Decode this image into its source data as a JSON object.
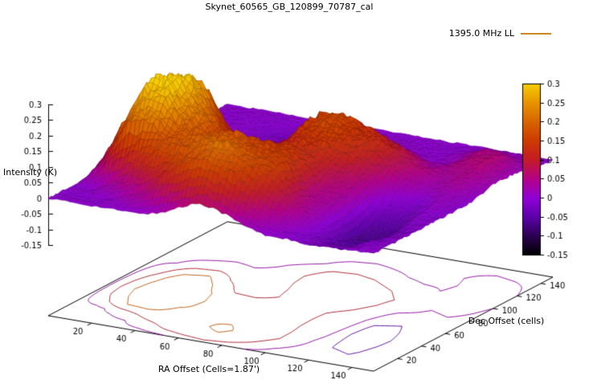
{
  "chart_data": {
    "type": "surface3d",
    "title": "Skynet_60565_GB_120899_70787_cal",
    "legend": {
      "label": "1395.0 MHz LL",
      "line_color": "#cc8822"
    },
    "xlabel": "RA Offset (Cells=1.87')",
    "ylabel": "Dec Offset (cells)",
    "zlabel": "Intensity (K)",
    "x_ticks": [
      20,
      40,
      60,
      80,
      100,
      120,
      140
    ],
    "y_ticks": [
      20,
      40,
      60,
      80,
      100,
      120,
      140
    ],
    "z_ticks": [
      "0.3",
      "0.25",
      "0.2",
      "0.15",
      "0.1",
      "0.05",
      "0",
      "-0.05",
      "-0.1",
      "-0.15"
    ],
    "cb_ticks": [
      "0.3",
      "0.25",
      "0.2",
      "0.15",
      "0.1",
      "0.05",
      "0",
      "-0.05",
      "-0.1",
      "-0.15"
    ],
    "x_range": [
      0,
      150
    ],
    "y_range": [
      0,
      150
    ],
    "z_range": [
      -0.15,
      0.3
    ],
    "cb_range": [
      -0.15,
      0.3
    ],
    "palette_stops": [
      {
        "t": 0.0,
        "c": "#000000"
      },
      {
        "t": 0.11,
        "c": "#2a0050"
      },
      {
        "t": 0.22,
        "c": "#5c00a8"
      },
      {
        "t": 0.33,
        "c": "#9000d8"
      },
      {
        "t": 0.44,
        "c": "#b4008c"
      },
      {
        "t": 0.56,
        "c": "#c41c24"
      },
      {
        "t": 0.67,
        "c": "#cc3c00"
      },
      {
        "t": 0.78,
        "c": "#d86400"
      },
      {
        "t": 0.89,
        "c": "#e89400"
      },
      {
        "t": 1.0,
        "c": "#f8cc00"
      }
    ],
    "contour_levels": [
      -0.04,
      0.02,
      0.1,
      0.2
    ],
    "heightmap": {
      "nx": 16,
      "ny": 16,
      "dx": 10,
      "dy": 10,
      "values": [
        [
          0,
          0,
          0,
          0,
          0,
          0.01,
          0.04,
          0.07,
          0.05,
          0.02,
          0,
          0,
          -0.01,
          0,
          0,
          0
        ],
        [
          0,
          0,
          0,
          0.02,
          0.06,
          0.13,
          0.17,
          0.18,
          0.15,
          0.09,
          0.03,
          0,
          -0.02,
          -0.03,
          0,
          0
        ],
        [
          0,
          0,
          0.04,
          0.1,
          0.16,
          0.18,
          0.19,
          0.22,
          0.17,
          0.14,
          0.07,
          0.01,
          -0.04,
          -0.05,
          -0.01,
          0
        ],
        [
          0,
          0.08,
          0.2,
          0.22,
          0.18,
          0.19,
          0.2,
          0.19,
          0.17,
          0.15,
          0.06,
          0.02,
          -0.05,
          -0.06,
          -0.02,
          0
        ],
        [
          0,
          0.14,
          0.26,
          0.28,
          0.21,
          0.18,
          0.19,
          0.17,
          0.16,
          0.14,
          0.05,
          0.03,
          -0.06,
          -0.07,
          -0.02,
          0
        ],
        [
          0,
          0.17,
          0.3,
          0.31,
          0.23,
          0.17,
          0.18,
          0.16,
          0.15,
          0.13,
          0.06,
          0.04,
          -0.05,
          -0.06,
          -0.01,
          0
        ],
        [
          0,
          0.15,
          0.29,
          0.3,
          0.22,
          0.14,
          0.13,
          0.14,
          0.14,
          0.12,
          0.08,
          0.05,
          -0.03,
          -0.04,
          0,
          0
        ],
        [
          0,
          0.11,
          0.26,
          0.28,
          0.17,
          0.07,
          0.06,
          0.11,
          0.14,
          0.14,
          0.11,
          0.07,
          0,
          -0.02,
          0.01,
          0
        ],
        [
          0,
          0.06,
          0.18,
          0.21,
          0.1,
          0.03,
          0.05,
          0.13,
          0.16,
          0.15,
          0.13,
          0.09,
          0.04,
          0.01,
          0.02,
          0
        ],
        [
          0,
          0.02,
          0.07,
          0.09,
          0.04,
          0.02,
          0.07,
          0.15,
          0.17,
          0.15,
          0.13,
          0.1,
          0.06,
          0.03,
          0.04,
          0.01
        ],
        [
          0,
          0,
          0.02,
          0.03,
          0.02,
          0.03,
          0.08,
          0.15,
          0.16,
          0.14,
          0.11,
          0.08,
          0.04,
          0.04,
          0.05,
          0.02
        ],
        [
          0,
          0,
          0,
          0,
          0,
          0.02,
          0.06,
          0.11,
          0.12,
          0.1,
          0.07,
          0.04,
          0.02,
          0.05,
          0.06,
          0.02
        ],
        [
          0,
          0,
          0,
          -0.01,
          -0.02,
          -0.02,
          0.01,
          0.05,
          0.06,
          0.04,
          0.02,
          0,
          0.01,
          0.05,
          0.06,
          0.02
        ],
        [
          0,
          0,
          0,
          -0.01,
          -0.03,
          -0.03,
          -0.01,
          0.01,
          0.02,
          0.01,
          0,
          0,
          0.02,
          0.05,
          0.04,
          0.01
        ],
        [
          0,
          0,
          0,
          0,
          -0.01,
          -0.01,
          0,
          0,
          0,
          0,
          0,
          0,
          0.01,
          0.02,
          0.01,
          0
        ],
        [
          0,
          0,
          0,
          0,
          0,
          0,
          0,
          0,
          0,
          0,
          0,
          0,
          0,
          0,
          0,
          0
        ]
      ]
    }
  }
}
